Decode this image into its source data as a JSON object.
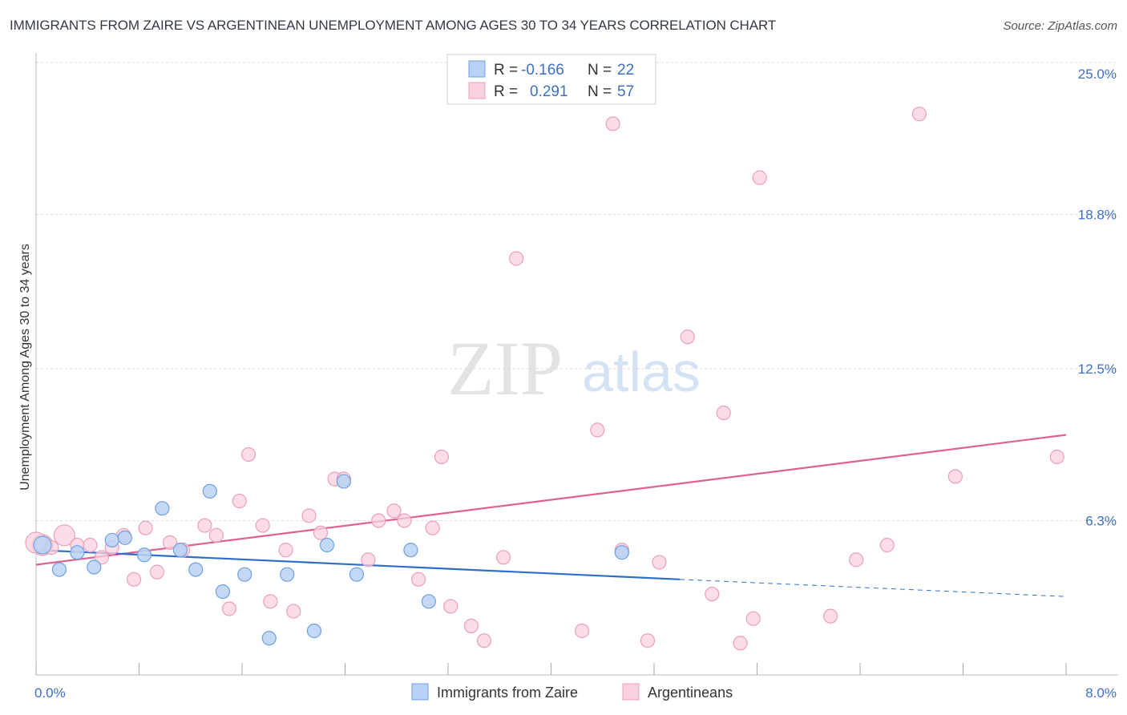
{
  "header": {
    "title": "IMMIGRANTS FROM ZAIRE VS ARGENTINEAN UNEMPLOYMENT AMONG AGES 30 TO 34 YEARS CORRELATION CHART",
    "source": "Source: ZipAtlas.com"
  },
  "watermark": {
    "zip": "ZIP",
    "atlas": "atlas"
  },
  "colors": {
    "blue_fill": "#b8d2f5",
    "blue_stroke": "#6fa0e0",
    "blue_line": "#2f6fcc",
    "pink_fill": "#fbd0de",
    "pink_stroke": "#eaa0b8",
    "pink_line": "#e0628e",
    "tick_text": "#3d6fc4",
    "grid": "#dddddd"
  },
  "chart_data": {
    "type": "scatter",
    "xlabel": "",
    "ylabel": "Unemployment Among Ages 30 to 34 years",
    "xlim": [
      0,
      8
    ],
    "ylim": [
      0,
      25
    ],
    "x_tick_labels": [
      "0.0%",
      "8.0%"
    ],
    "y_ticks": [
      6.3,
      12.5,
      18.8,
      25.0
    ],
    "y_tick_labels": [
      "6.3%",
      "12.5%",
      "18.8%",
      "25.0%"
    ],
    "grid": true,
    "legend_stats": [
      {
        "r_label": "R =",
        "r_value": "-0.166",
        "n_label": "N =",
        "n_value": "22"
      },
      {
        "r_label": "R =",
        "r_value": "0.291",
        "n_label": "N =",
        "n_value": "57"
      }
    ],
    "series": [
      {
        "name": "Immigrants from Zaire",
        "color": "#b8d2f5",
        "trend": {
          "x0": 0,
          "y0": 5.1,
          "x1": 5.0,
          "y1": 3.9,
          "dash_to_x": 8.0,
          "dash_to_y": 3.2
        },
        "points": [
          [
            0.05,
            5.3
          ],
          [
            0.18,
            4.3
          ],
          [
            0.32,
            5.0
          ],
          [
            0.45,
            4.4
          ],
          [
            0.59,
            5.5
          ],
          [
            0.69,
            5.6
          ],
          [
            0.84,
            4.9
          ],
          [
            0.98,
            6.8
          ],
          [
            1.12,
            5.1
          ],
          [
            1.24,
            4.3
          ],
          [
            1.35,
            7.5
          ],
          [
            1.45,
            3.4
          ],
          [
            1.62,
            4.1
          ],
          [
            1.81,
            1.5
          ],
          [
            1.95,
            4.1
          ],
          [
            2.16,
            1.8
          ],
          [
            2.26,
            5.3
          ],
          [
            2.39,
            7.9
          ],
          [
            2.49,
            4.1
          ],
          [
            2.91,
            5.1
          ],
          [
            3.05,
            3.0
          ],
          [
            4.55,
            5.0
          ]
        ]
      },
      {
        "name": "Argentineans",
        "color": "#fbd0de",
        "trend": {
          "x0": 0,
          "y0": 4.5,
          "x1": 8.0,
          "y1": 9.8
        },
        "points": [
          [
            0.05,
            5.3
          ],
          [
            0.12,
            5.2
          ],
          [
            0.22,
            5.7
          ],
          [
            0.32,
            5.3
          ],
          [
            0.42,
            5.3
          ],
          [
            0.51,
            4.8
          ],
          [
            0.59,
            5.2
          ],
          [
            0.68,
            5.7
          ],
          [
            0.76,
            3.9
          ],
          [
            0.85,
            6.0
          ],
          [
            0.94,
            4.2
          ],
          [
            1.04,
            5.4
          ],
          [
            1.14,
            5.1
          ],
          [
            1.31,
            6.1
          ],
          [
            1.4,
            5.7
          ],
          [
            1.5,
            2.7
          ],
          [
            1.58,
            7.1
          ],
          [
            1.65,
            9.0
          ],
          [
            1.76,
            6.1
          ],
          [
            1.82,
            3.0
          ],
          [
            1.94,
            5.1
          ],
          [
            2.0,
            2.6
          ],
          [
            2.12,
            6.5
          ],
          [
            2.21,
            5.8
          ],
          [
            2.32,
            8.0
          ],
          [
            2.39,
            8.0
          ],
          [
            2.58,
            4.7
          ],
          [
            2.66,
            6.3
          ],
          [
            2.78,
            6.7
          ],
          [
            2.86,
            6.3
          ],
          [
            2.97,
            3.9
          ],
          [
            3.08,
            6.0
          ],
          [
            3.15,
            8.9
          ],
          [
            3.22,
            2.8
          ],
          [
            3.38,
            2.0
          ],
          [
            3.48,
            1.4
          ],
          [
            3.63,
            4.8
          ],
          [
            3.73,
            17.0
          ],
          [
            4.24,
            1.8
          ],
          [
            4.36,
            10.0
          ],
          [
            4.48,
            22.5
          ],
          [
            4.55,
            5.1
          ],
          [
            4.75,
            1.4
          ],
          [
            4.84,
            4.6
          ],
          [
            5.06,
            13.8
          ],
          [
            5.25,
            3.3
          ],
          [
            5.34,
            10.7
          ],
          [
            5.47,
            1.3
          ],
          [
            5.57,
            2.3
          ],
          [
            5.62,
            20.3
          ],
          [
            6.17,
            2.4
          ],
          [
            6.37,
            4.7
          ],
          [
            6.61,
            5.3
          ],
          [
            6.86,
            22.9
          ],
          [
            7.14,
            8.1
          ],
          [
            7.93,
            8.9
          ],
          [
            0.0,
            5.4
          ]
        ]
      }
    ]
  }
}
